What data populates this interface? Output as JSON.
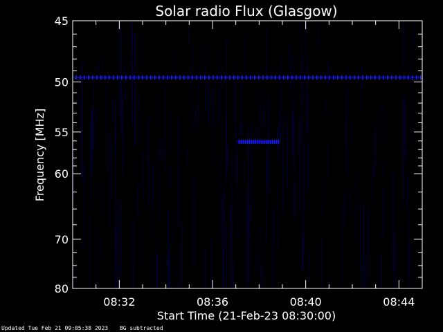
{
  "chart_data": {
    "type": "heatmap",
    "title": "Solar radio Flux (Glasgow)",
    "xlabel": "Start Time (21-Feb-23 08:30:00)",
    "ylabel": "Frequency [MHz]",
    "x_tick_labels": [
      "08:32",
      "08:36",
      "08:40",
      "08:44"
    ],
    "x_tick_minutes": [
      2,
      6,
      10,
      14
    ],
    "xlim_minutes": [
      0,
      15
    ],
    "y_tick_labels": [
      "45",
      "50",
      "55",
      "60",
      "70",
      "80"
    ],
    "y_tick_values": [
      45,
      50,
      55,
      60,
      70,
      80
    ],
    "ylim": [
      45,
      80
    ],
    "y_scale": "reciprocal",
    "colors": {
      "background": "#000000",
      "signal": "#1a1aff",
      "axes": "#ffffff"
    },
    "features": [
      {
        "name": "persistent band",
        "frequency_mhz": 49.6,
        "time_minutes": [
          0,
          15
        ]
      },
      {
        "name": "short burst",
        "frequency_mhz": 56.1,
        "time_minutes": [
          7.0,
          8.9
        ]
      }
    ]
  },
  "footer": {
    "updated": "Updated Tue Feb 21 09:05:38 2023",
    "bg_note": "BG subtracted"
  }
}
